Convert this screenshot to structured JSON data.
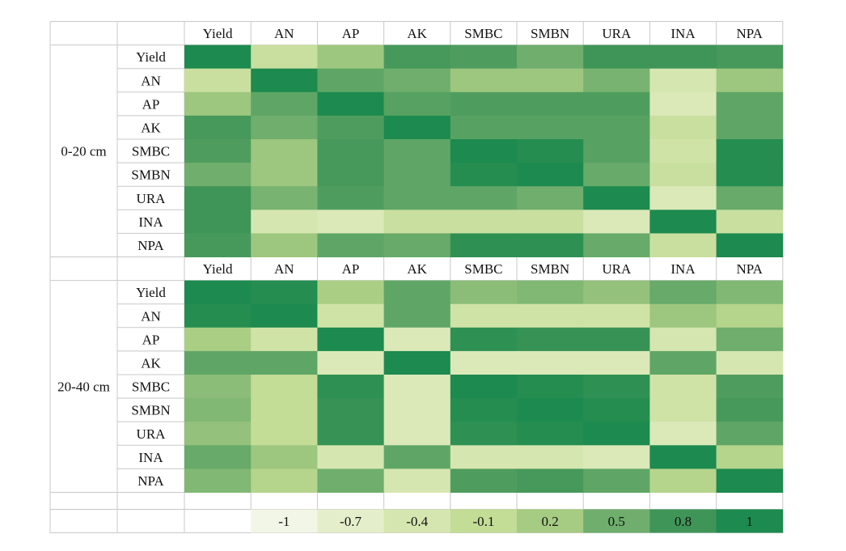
{
  "chart_data": {
    "type": "heatmap",
    "variables": [
      "Yield",
      "AN",
      "AP",
      "AK",
      "SMBC",
      "SMBN",
      "URA",
      "INA",
      "NPA"
    ],
    "panels": [
      {
        "label": "0-20 cm",
        "matrix": [
          [
            1,
            -0.2,
            0.25,
            0.75,
            0.7,
            0.5,
            0.8,
            0.8,
            0.75
          ],
          [
            -0.2,
            1,
            0.6,
            0.5,
            0.25,
            0.25,
            0.45,
            -0.4,
            0.25
          ],
          [
            0.25,
            0.6,
            1,
            0.65,
            0.7,
            0.7,
            0.7,
            -0.5,
            0.6
          ],
          [
            0.75,
            0.5,
            0.7,
            1,
            0.65,
            0.65,
            0.65,
            -0.2,
            0.6
          ],
          [
            0.7,
            0.25,
            0.75,
            0.6,
            1,
            0.95,
            0.65,
            -0.3,
            0.95
          ],
          [
            0.5,
            0.25,
            0.75,
            0.6,
            0.95,
            1,
            0.55,
            -0.2,
            0.95
          ],
          [
            0.8,
            0.45,
            0.7,
            0.6,
            0.6,
            0.5,
            1,
            -0.5,
            0.55
          ],
          [
            0.8,
            -0.4,
            -0.5,
            -0.2,
            -0.2,
            -0.2,
            -0.5,
            1,
            -0.2
          ],
          [
            0.75,
            0.25,
            0.6,
            0.55,
            0.9,
            0.9,
            0.55,
            -0.2,
            1
          ]
        ]
      },
      {
        "label": "20-40 cm",
        "matrix": [
          [
            1,
            0.95,
            0.15,
            0.6,
            0.35,
            0.4,
            0.3,
            0.55,
            0.4
          ],
          [
            0.95,
            1,
            -0.3,
            0.6,
            -0.3,
            -0.3,
            -0.3,
            0.25,
            0.05
          ],
          [
            0.15,
            -0.3,
            1,
            -0.5,
            0.9,
            0.85,
            0.85,
            -0.4,
            0.5
          ],
          [
            0.6,
            0.6,
            -0.5,
            1,
            -0.5,
            -0.5,
            -0.5,
            0.6,
            -0.4
          ],
          [
            0.35,
            -0.1,
            0.9,
            -0.5,
            1,
            0.95,
            0.9,
            -0.3,
            0.7
          ],
          [
            0.4,
            -0.1,
            0.85,
            -0.5,
            0.95,
            1,
            0.95,
            -0.3,
            0.75
          ],
          [
            0.3,
            -0.1,
            0.85,
            -0.5,
            0.9,
            0.95,
            1,
            -0.5,
            0.6
          ],
          [
            0.55,
            0.25,
            -0.4,
            0.6,
            -0.4,
            -0.4,
            -0.5,
            1,
            0.05
          ],
          [
            0.4,
            0.05,
            0.5,
            -0.4,
            0.7,
            0.75,
            0.6,
            0.05,
            1
          ]
        ]
      }
    ],
    "legend": {
      "values": [
        -1,
        -0.7,
        -0.4,
        -0.1,
        0.2,
        0.5,
        0.8,
        1
      ],
      "labels": [
        "-1",
        "-0.7",
        "-0.4",
        "-0.1",
        "0.2",
        "0.5",
        "0.8",
        "1"
      ],
      "colors": [
        "#f2f6e6",
        "#e4eecb",
        "#d6e6b0",
        "#c3dc96",
        "#a6cb82",
        "#6fae6d",
        "#3f9557",
        "#1d8a4f"
      ],
      "placement": "bottom"
    },
    "range": [
      -1,
      1
    ]
  }
}
